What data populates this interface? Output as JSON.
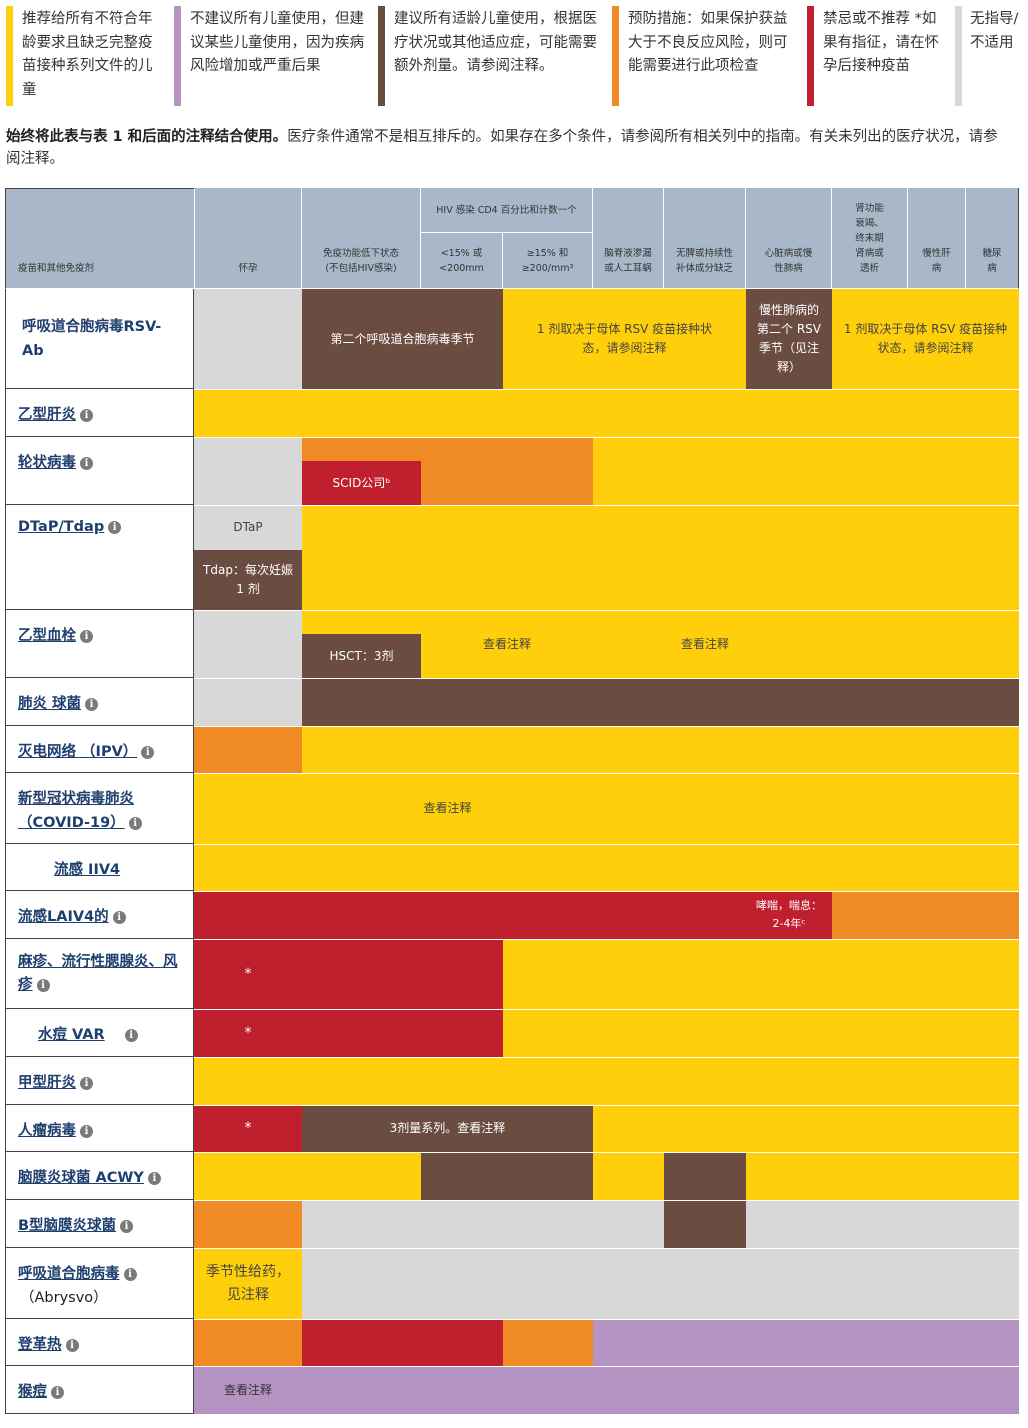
{
  "legend": [
    {
      "text": "推荐给所有不符合年龄要求且缺乏完整疫苗接种系列文件的儿童",
      "color": "#fecf0a"
    },
    {
      "text": "不建议所有儿童使用，但建议某些儿童使用，因为疾病风险增加或严重后果",
      "color": "#b594c4"
    },
    {
      "text": "建议所有适龄儿童使用，根据医疗状况或其他适应症，可能需要额外剂量。请参阅注释。",
      "color": "#6b4c41"
    },
    {
      "text": "预防措施：如果保护获益大于不良反应风险，则可能需要进行此项检查",
      "color": "#f08a24"
    },
    {
      "text": "禁忌或不推荐 *如果有指征，请在怀孕后接种疫苗",
      "color": "#c0202e"
    },
    {
      "text": "无指导/不适用",
      "color": "#d8d8d8"
    }
  ],
  "intro": {
    "bold": "始终将此表与表 1 和后面的注释结合使用。",
    "rest": "医疗条件通常不是相互排斥的。如果存在多个条件，请参阅所有相关列中的指南。有关未列出的医疗状况，请参阅注释。"
  },
  "headers": {
    "vaccine": "疫苗和其他免疫剂",
    "pregnancy": "怀孕",
    "immuno": "免疫功能低下状态 (不包括HIV感染)",
    "hiv_group": "HIV 感染 CD4 百分比和计数一个",
    "hiv_low": "<15% 或 <200mm",
    "hiv_high": "≥15% 和 ≥200/mm³",
    "csf": "脑脊液渗漏或人工耳蜗",
    "asplenia": "无脾或持续性补体成分缺乏",
    "heart": "心脏病或慢性肺病",
    "kidney": "肾功能衰竭、终末期肾病或透析",
    "liver": "慢性肝病",
    "diabetes": "糖尿病"
  },
  "rows": [
    {
      "name": "呼吸道合胞病毒RSV-Ab"
    },
    {
      "name": "乙型肝炎"
    },
    {
      "name": "轮状病毒"
    },
    {
      "name": "DTaP/Tdap"
    },
    {
      "name": "乙型血栓"
    },
    {
      "name": "肺炎 球菌"
    },
    {
      "name": "灭电网络 （IPV）"
    },
    {
      "name": "新型冠状病毒肺炎 （COVID-19）"
    },
    {
      "name": "流感 IIV4"
    },
    {
      "name": "流感LAIV4的"
    },
    {
      "name": "麻疹、流行性腮腺炎、风疹"
    },
    {
      "name": "水痘 VAR"
    },
    {
      "name": "甲型肝炎"
    },
    {
      "name": "人瘤病毒"
    },
    {
      "name": "脑膜炎球菌 ACWY"
    },
    {
      "name": "B型脑膜炎球菌"
    },
    {
      "name": "呼吸道合胞病毒",
      "sub": "（Abrysvo）"
    },
    {
      "name": "登革热"
    },
    {
      "name": "猴痘"
    }
  ],
  "cells": {
    "rsv_immuno": "第二个呼吸道合胞病毒季节",
    "rsv_hiv": "1 剂取决于母体 RSV 疫苗接种状态，请参阅注释",
    "rsv_heart": "慢性肺病的第二个 RSV 季节（见注释）",
    "rsv_right": "1 剂取决于母体 RSV 疫苗接种状态，请参阅注释",
    "rota_scid": "SCID公司ᵇ",
    "dtap": "DTaP",
    "tdap": "Tdap：每次妊娠 1 剂",
    "hib_hsct": "HSCT：3剂",
    "see_note": "查看注释",
    "laiv_asthma": "哮喘，喘息：2-4年ᶜ",
    "star": "*",
    "hpv_series": "3剂量系列。查看注释",
    "abrysvo_preg": "季节性给药，见注释",
    "note_word": "注释"
  }
}
